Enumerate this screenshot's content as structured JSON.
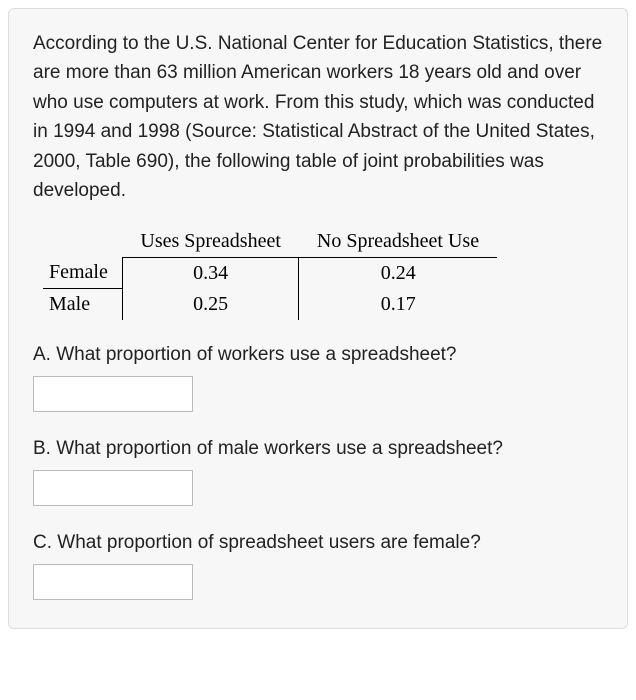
{
  "intro": "According to the U.S. National Center for Education Statistics, there are more than 63 million American workers 18 years old and over who use computers at work. From this study, which was conducted in 1994 and 1998 (Source: Statistical Abstract of the United States, 2000, Table 690), the following table of joint probabilities was developed.",
  "table": {
    "col_headers": [
      "Uses Spreadsheet",
      "No Spreadsheet Use"
    ],
    "rows": [
      {
        "label": "Female",
        "values": [
          "0.34",
          "0.24"
        ]
      },
      {
        "label": "Male",
        "values": [
          "0.25",
          "0.17"
        ]
      }
    ]
  },
  "questions": {
    "a": {
      "text": "A. What proportion of workers use a spreadsheet?",
      "value": ""
    },
    "b": {
      "text": "B. What proportion of male workers use a spreadsheet?",
      "value": ""
    },
    "c": {
      "text": "C. What proportion of spreadsheet users are female?",
      "value": ""
    }
  },
  "colors": {
    "container_bg": "#f7f7f7",
    "container_border": "#dddddd",
    "text": "#222222",
    "table_border": "#000000",
    "input_border": "#bbbbbb",
    "input_bg": "#ffffff"
  }
}
